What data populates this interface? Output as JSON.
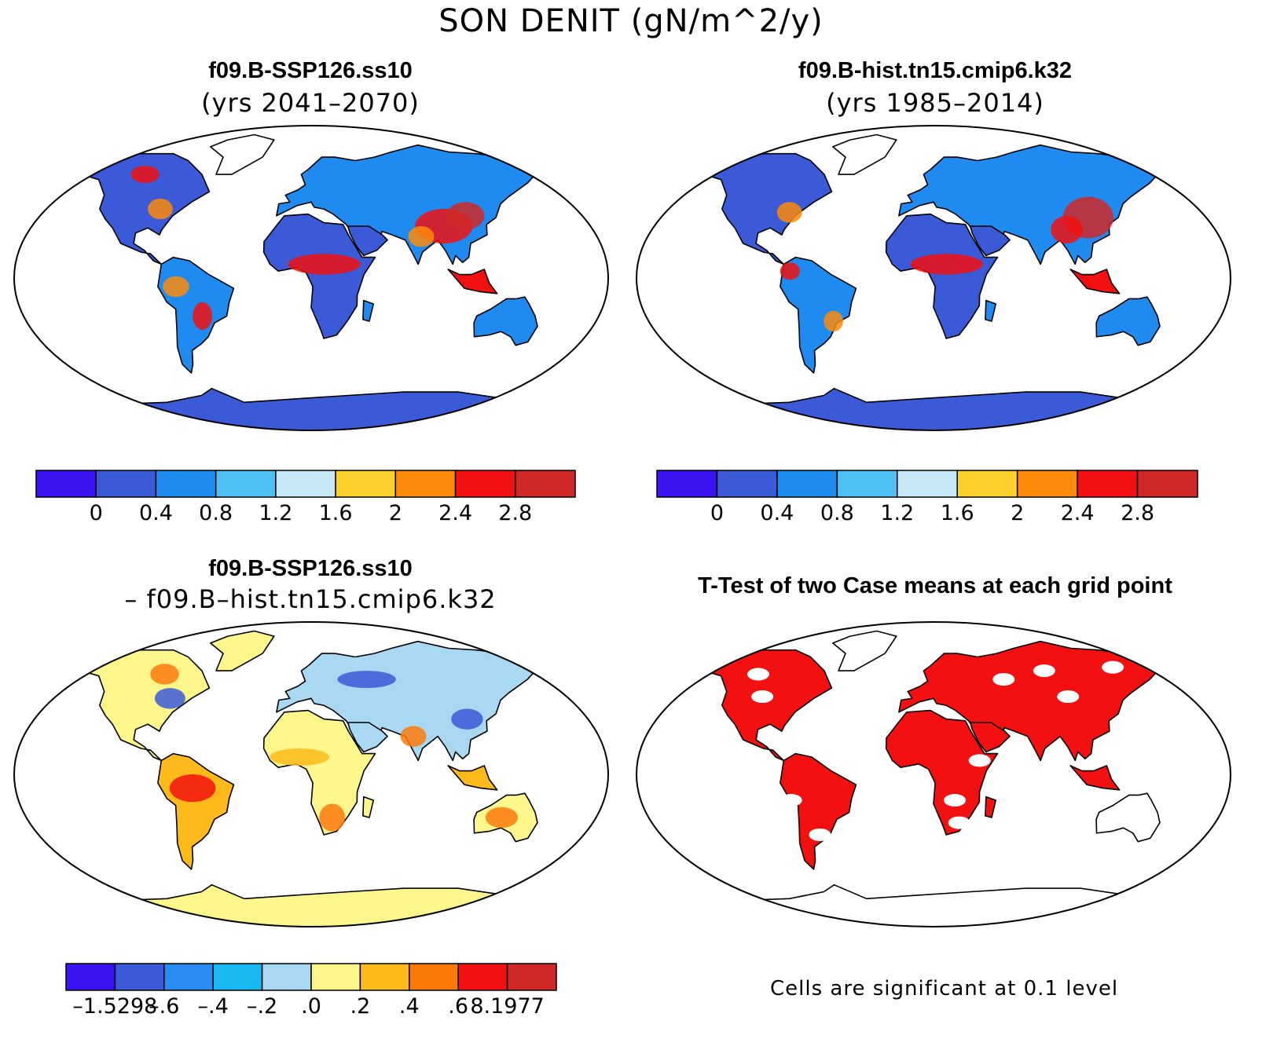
{
  "figure": {
    "title": "SON DENIT (gN/m^2/y)"
  },
  "panels": [
    {
      "id": "future",
      "title": "f09.B-SSP126.ss10",
      "subtitle": "(yrs 2041–2070)",
      "colorbar": {
        "colors": [
          "#3b12f2",
          "#3b5ad8",
          "#1f8bf0",
          "#4ec0f2",
          "#c8e8f8",
          "#fdd02e",
          "#fd8a0a",
          "#f21010",
          "#d02828"
        ],
        "tick_labels": [
          "0",
          "0.4",
          "0.8",
          "1.2",
          "1.6",
          "2",
          "2.4",
          "2.8"
        ]
      }
    },
    {
      "id": "historical",
      "title": "f09.B-hist.tn15.cmip6.k32",
      "subtitle": "(yrs 1985–2014)",
      "colorbar": {
        "colors": [
          "#3b12f2",
          "#3b5ad8",
          "#1f8bf0",
          "#4ec0f2",
          "#c8e8f8",
          "#fdd02e",
          "#fd8a0a",
          "#f21010",
          "#d02828"
        ],
        "tick_labels": [
          "0",
          "0.4",
          "0.8",
          "1.2",
          "1.6",
          "2",
          "2.4",
          "2.8"
        ]
      }
    },
    {
      "id": "difference",
      "title": "f09.B-SSP126.ss10",
      "subtitle": "– f09.B–hist.tn15.cmip6.k32",
      "colorbar": {
        "colors": [
          "#3b12f2",
          "#3b5ad8",
          "#2a8cf2",
          "#18b8f2",
          "#a8d8f2",
          "#fdf68a",
          "#fdba1a",
          "#fd7a0a",
          "#f21010",
          "#d02828"
        ],
        "tick_labels": [
          "–1.5298",
          "–.6",
          "–.4",
          "–.2",
          ".0",
          ".2",
          ".4",
          ".6",
          "8.1977"
        ]
      }
    },
    {
      "id": "ttest",
      "title": "T-Test of two Case means at each grid point",
      "note": "Cells are significant at 0.1 level",
      "color": "#f21010"
    }
  ]
}
